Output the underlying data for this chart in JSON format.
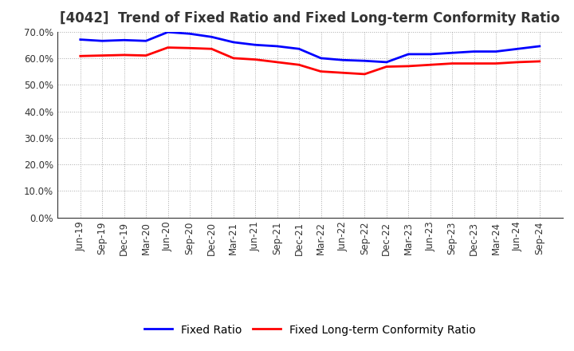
{
  "title": "[4042]  Trend of Fixed Ratio and Fixed Long-term Conformity Ratio",
  "x_labels": [
    "Jun-19",
    "Sep-19",
    "Dec-19",
    "Mar-20",
    "Jun-20",
    "Sep-20",
    "Dec-20",
    "Mar-21",
    "Jun-21",
    "Sep-21",
    "Dec-21",
    "Mar-22",
    "Jun-22",
    "Sep-22",
    "Dec-22",
    "Mar-23",
    "Jun-23",
    "Sep-23",
    "Dec-23",
    "Mar-24",
    "Jun-24",
    "Sep-24"
  ],
  "fixed_ratio": [
    67.0,
    66.5,
    66.8,
    66.5,
    69.8,
    69.2,
    68.0,
    66.0,
    65.0,
    64.5,
    63.5,
    60.0,
    59.3,
    59.0,
    58.5,
    61.5,
    61.5,
    62.0,
    62.5,
    62.5,
    63.5,
    64.5
  ],
  "fixed_lt_ratio": [
    60.8,
    61.0,
    61.2,
    61.0,
    64.0,
    63.8,
    63.5,
    60.0,
    59.5,
    58.5,
    57.5,
    55.0,
    54.5,
    54.0,
    56.8,
    57.0,
    57.5,
    58.0,
    58.0,
    58.0,
    58.5,
    58.8
  ],
  "ylim": [
    0,
    70.0
  ],
  "yticks": [
    0.0,
    10.0,
    20.0,
    30.0,
    40.0,
    50.0,
    60.0,
    70.0
  ],
  "fixed_ratio_color": "#0000FF",
  "fixed_lt_ratio_color": "#FF0000",
  "line_width": 2.0,
  "bg_color": "#FFFFFF",
  "plot_bg_color": "#FFFFFF",
  "grid_color": "#AAAAAA",
  "legend_fixed_ratio": "Fixed Ratio",
  "legend_fixed_lt_ratio": "Fixed Long-term Conformity Ratio",
  "title_fontsize": 12,
  "tick_fontsize": 8.5,
  "legend_fontsize": 10
}
